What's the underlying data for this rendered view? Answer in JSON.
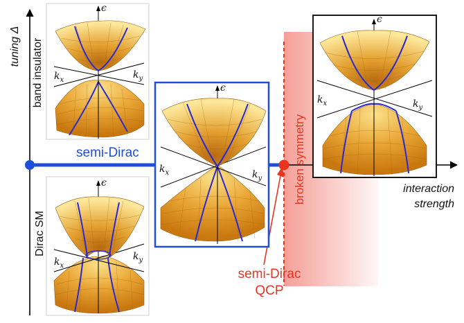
{
  "axes": {
    "vertical_label": "tuning Δ",
    "horizontal_label_line1": "interaction",
    "horizontal_label_line2": "strength"
  },
  "regions": {
    "top": "band insulator",
    "bottom": "Dirac SM",
    "line": "semi-Dirac",
    "right": "broken symmetry"
  },
  "qcp": {
    "line1": "semi-Dirac",
    "line2": "QCP"
  },
  "panel_axes": {
    "energy": "ϵ",
    "kx": "k",
    "kx_sub": "x",
    "ky": "k",
    "ky_sub": "y"
  },
  "colors": {
    "blue": "#1f4fd8",
    "red": "#e8341e",
    "surface_light": "#fde79a",
    "surface_dark": "#d58a14",
    "band_line": "#2a2ad0",
    "shade": "#f08a82"
  }
}
